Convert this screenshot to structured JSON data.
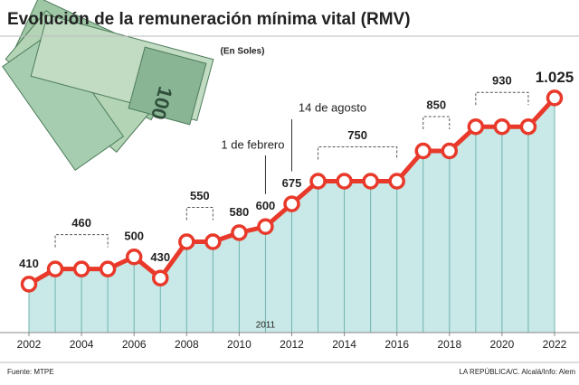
{
  "chart_data": {
    "type": "area-line",
    "title": "Evolución de la remuneración mínima vital (RMV)",
    "subtitle": "(En Soles)",
    "x": [
      2002,
      2003,
      2004,
      2005,
      2006,
      2007,
      2008,
      2009,
      2010,
      2011,
      2012,
      2013,
      2014,
      2015,
      2016,
      2017,
      2018,
      2019,
      2020,
      2021,
      2022
    ],
    "series": [
      {
        "name": "RMV",
        "color": "#e8392a",
        "values": [
          410,
          460,
          460,
          460,
          500,
          430,
          550,
          550,
          580,
          600,
          675,
          750,
          750,
          750,
          750,
          850,
          850,
          930,
          930,
          930,
          1025
        ],
        "value_labels": [
          "410",
          "460",
          null,
          null,
          "500",
          "430",
          "550",
          null,
          "580",
          "600",
          "675",
          "750",
          null,
          null,
          null,
          "850",
          null,
          "930",
          null,
          null,
          "1.025"
        ]
      }
    ],
    "area_color": "#c8e9e7",
    "xlim": [
      2002,
      2022
    ],
    "xticks": [
      2002,
      2004,
      2006,
      2008,
      2010,
      2012,
      2014,
      2016,
      2018,
      2020,
      2022
    ],
    "ylim": [
      250,
      1050
    ],
    "annotations": [
      {
        "text": "1 de febrero",
        "x": 2011
      },
      {
        "text": "14 de agosto",
        "x": 2012
      },
      {
        "text": "2011",
        "x": 2011
      }
    ],
    "source": "Fuente: MTPE",
    "credit": "LA REPÚBLICA/C. Alcalá/Info: Alem"
  }
}
